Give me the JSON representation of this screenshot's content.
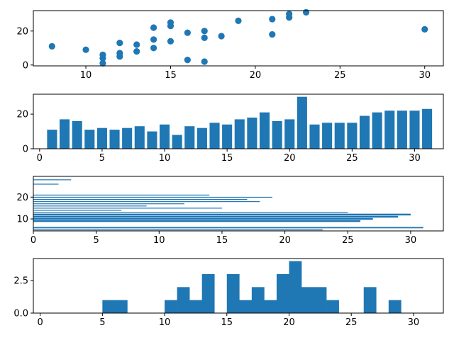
{
  "colors": {
    "primary": "#1f77b4"
  },
  "chart_data": [
    {
      "type": "scatter",
      "xlim": [
        6.9,
        31.1
      ],
      "ylim": [
        -0.5,
        32
      ],
      "xticks": [
        10,
        15,
        20,
        25,
        30
      ],
      "yticks": [
        0,
        20
      ],
      "points": [
        [
          8,
          11
        ],
        [
          10,
          9
        ],
        [
          11,
          1
        ],
        [
          11,
          4
        ],
        [
          11,
          6
        ],
        [
          12,
          5
        ],
        [
          12,
          7
        ],
        [
          12,
          13
        ],
        [
          13,
          8
        ],
        [
          13,
          12
        ],
        [
          14,
          10
        ],
        [
          14,
          15
        ],
        [
          14,
          22
        ],
        [
          15,
          14
        ],
        [
          15,
          23
        ],
        [
          15,
          25
        ],
        [
          16,
          3
        ],
        [
          16,
          19
        ],
        [
          17,
          2
        ],
        [
          17,
          16
        ],
        [
          17,
          20
        ],
        [
          18,
          17
        ],
        [
          19,
          26
        ],
        [
          21,
          18
        ],
        [
          21,
          27
        ],
        [
          22,
          28
        ],
        [
          22,
          30
        ],
        [
          23,
          31
        ],
        [
          30,
          21
        ]
      ]
    },
    {
      "type": "bar",
      "xlim": [
        -0.5,
        32.3
      ],
      "ylim": [
        0,
        31.5
      ],
      "xticks": [
        0,
        5,
        10,
        15,
        20,
        25,
        30
      ],
      "yticks": [
        0,
        20
      ],
      "x": [
        1,
        2,
        3,
        4,
        5,
        6,
        7,
        8,
        9,
        10,
        11,
        12,
        13,
        14,
        15,
        16,
        17,
        18,
        19,
        20,
        21,
        22,
        23,
        24,
        25,
        26,
        27,
        28,
        29,
        30,
        31
      ],
      "values": [
        11,
        17,
        16,
        11,
        12,
        11,
        12,
        13,
        10,
        14,
        8,
        13,
        12,
        15,
        14,
        17,
        18,
        21,
        16,
        17,
        30,
        14,
        15,
        15,
        15,
        19,
        21,
        22,
        22,
        22,
        23
      ]
    },
    {
      "type": "barh",
      "xlim": [
        0,
        32.6
      ],
      "ylim": [
        4.5,
        29.5
      ],
      "xticks": [
        0,
        5,
        10,
        15,
        20,
        25,
        30
      ],
      "yticks": [
        10,
        20
      ],
      "bars": [
        [
          5,
          23,
          0.45
        ],
        [
          6,
          31,
          0.6
        ],
        [
          9,
          26,
          0.8
        ],
        [
          10,
          27,
          0.8
        ],
        [
          11,
          29,
          0.8
        ],
        [
          12,
          30,
          0.8
        ],
        [
          13,
          25,
          0.3
        ],
        [
          14,
          7,
          0.25
        ],
        [
          15,
          15,
          0.25
        ],
        [
          16,
          9,
          0.25
        ],
        [
          17,
          12,
          0.25
        ],
        [
          18,
          18,
          0.25
        ],
        [
          19,
          17,
          0.25
        ],
        [
          20,
          19,
          0.25
        ],
        [
          21,
          14,
          0.25
        ],
        [
          26,
          2,
          0.25
        ],
        [
          28,
          3,
          0.25
        ]
      ]
    },
    {
      "type": "histogram",
      "xlim": [
        -0.55,
        32.4
      ],
      "ylim": [
        0,
        4.2
      ],
      "xticks": [
        0,
        5,
        10,
        15,
        20,
        25,
        30
      ],
      "ytick_labels": [
        "0.0",
        "2.5"
      ],
      "ytick_values": [
        0,
        2.5
      ],
      "bins": [
        [
          5,
          6,
          1
        ],
        [
          6,
          7,
          1
        ],
        [
          10,
          11,
          1
        ],
        [
          11,
          12,
          2
        ],
        [
          12,
          13,
          1
        ],
        [
          13,
          14,
          3
        ],
        [
          15,
          16,
          3
        ],
        [
          16,
          17,
          1
        ],
        [
          17,
          18,
          2
        ],
        [
          18,
          19,
          1
        ],
        [
          19,
          20,
          3
        ],
        [
          20,
          21,
          4
        ],
        [
          21,
          22,
          2
        ],
        [
          22,
          23,
          2
        ],
        [
          23,
          24,
          1
        ],
        [
          26,
          27,
          2
        ],
        [
          28,
          29,
          1
        ]
      ]
    }
  ]
}
